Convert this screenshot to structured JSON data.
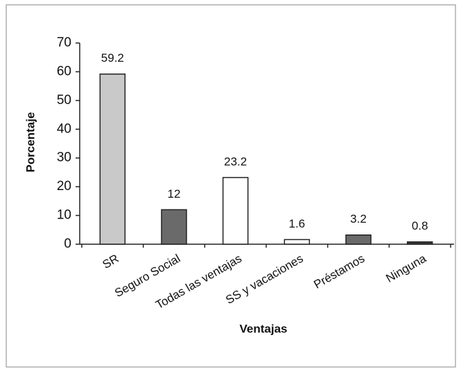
{
  "chart_data": {
    "type": "bar",
    "categories": [
      "SR",
      "Seguro Social",
      "Todas las ventajas",
      "SS y vacaciones",
      "Préstamos",
      "Ninguna"
    ],
    "values": [
      59.2,
      12,
      23.2,
      1.6,
      3.2,
      0.8
    ],
    "colors": [
      "#c9c9c9",
      "#6a6a6a",
      "#ffffff",
      "#ffffff",
      "#6a6a6a",
      "#3a3a3a"
    ],
    "ylabel": "Porcentaje",
    "xlabel": "Ventajas",
    "ylim": [
      0,
      70
    ],
    "yticks": [
      0,
      10,
      20,
      30,
      40,
      50,
      60,
      70
    ],
    "grid": false
  }
}
